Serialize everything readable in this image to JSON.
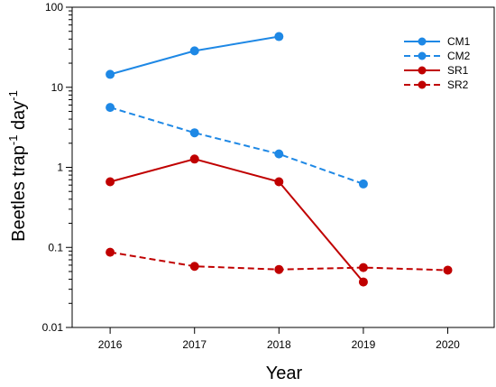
{
  "chart_data": {
    "type": "line",
    "xlabel": "Year",
    "ylabel_main": "Beetles trap",
    "ylabel_sup1": "-1",
    "ylabel_mid": " day",
    "ylabel_sup2": "-1",
    "y_scale": "log",
    "xlim": [
      2015.55,
      2020.55
    ],
    "ylim": [
      0.01,
      100
    ],
    "x_ticks": [
      2016,
      2017,
      2018,
      2019,
      2020
    ],
    "x_tick_labels": [
      "2016",
      "2017",
      "2018",
      "2019",
      "2020"
    ],
    "y_ticks": [
      0.01,
      0.1,
      1,
      10,
      100
    ],
    "y_tick_labels": [
      "0.01",
      "0.1",
      "1",
      "10",
      "100"
    ],
    "grid": false,
    "legend_position": "top-right",
    "series": [
      {
        "name": "CM1",
        "color": "#1E88E5",
        "line_style": "solid",
        "points": [
          {
            "x": 2016,
            "y": 14.5
          },
          {
            "x": 2017,
            "y": 28.5
          },
          {
            "x": 2018,
            "y": 43
          }
        ]
      },
      {
        "name": "CM2",
        "color": "#1E88E5",
        "line_style": "dashed",
        "points": [
          {
            "x": 2016,
            "y": 5.6
          },
          {
            "x": 2017,
            "y": 2.7
          },
          {
            "x": 2018,
            "y": 1.47
          },
          {
            "x": 2019,
            "y": 0.62
          }
        ]
      },
      {
        "name": "SR1",
        "color": "#C00000",
        "line_style": "solid",
        "points": [
          {
            "x": 2016,
            "y": 0.66
          },
          {
            "x": 2017,
            "y": 1.27
          },
          {
            "x": 2018,
            "y": 0.66
          },
          {
            "x": 2019,
            "y": 0.037
          }
        ]
      },
      {
        "name": "SR2",
        "color": "#C00000",
        "line_style": "dashed",
        "points": [
          {
            "x": 2016,
            "y": 0.087
          },
          {
            "x": 2017,
            "y": 0.058
          },
          {
            "x": 2018,
            "y": 0.053
          },
          {
            "x": 2019,
            "y": 0.056
          },
          {
            "x": 2020,
            "y": 0.052
          }
        ]
      }
    ]
  }
}
